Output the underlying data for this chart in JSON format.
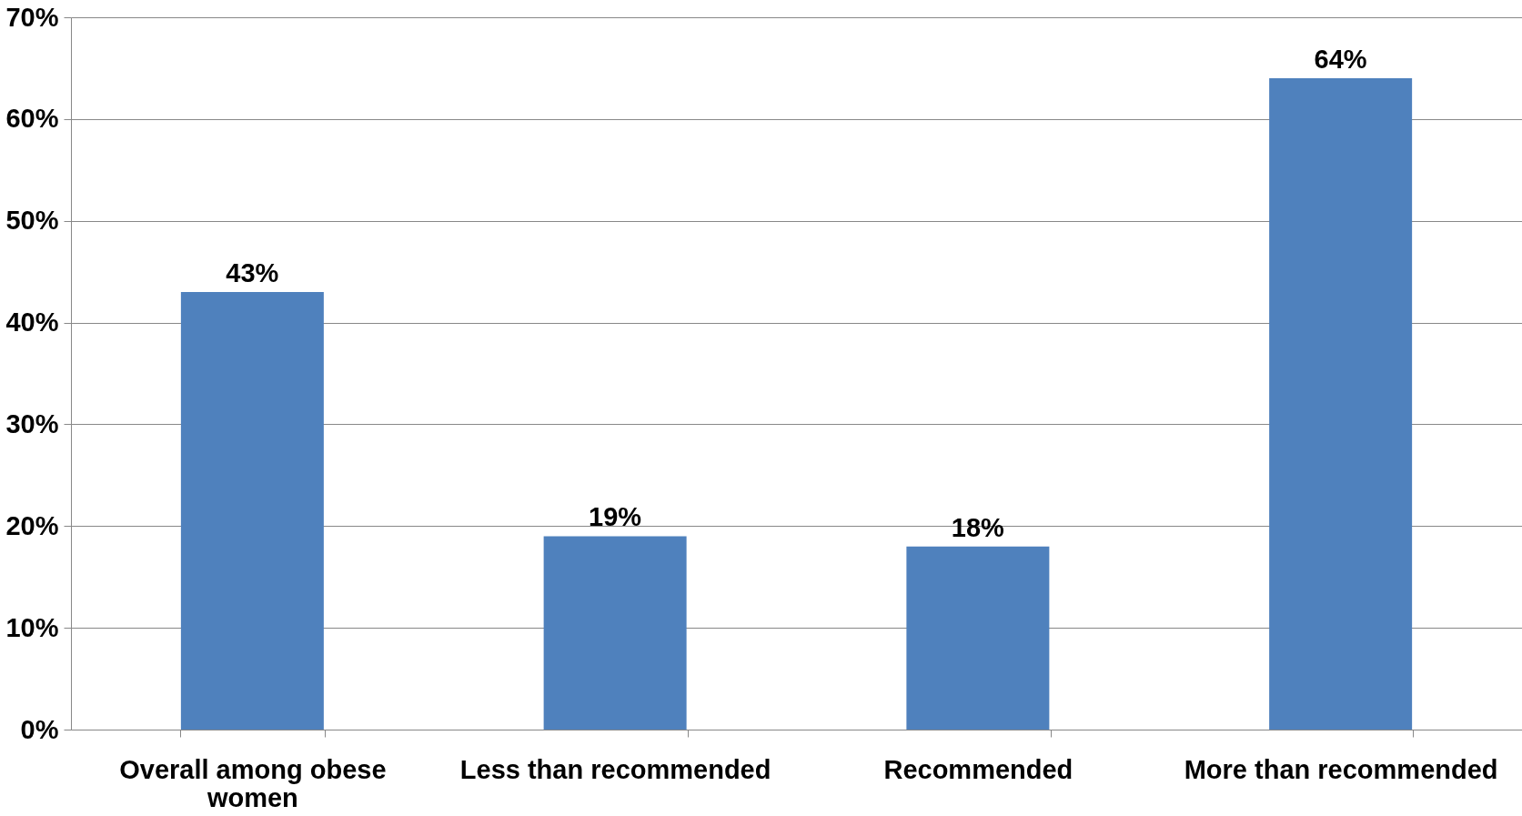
{
  "chart_data": {
    "type": "bar",
    "categories": [
      "Overall  among obese women",
      "Less than recommended",
      "Recommended",
      "More than recommended"
    ],
    "values": [
      43,
      19,
      18,
      64
    ],
    "color": "#4f81bd",
    "value_labels": [
      "43%",
      "19%",
      "18%",
      "64%"
    ],
    "ylim": [
      0,
      70
    ],
    "yticks": [
      {
        "value": 0,
        "label": "0%"
      },
      {
        "value": 10,
        "label": "10%"
      },
      {
        "value": 20,
        "label": "20%"
      },
      {
        "value": 30,
        "label": "30%"
      },
      {
        "value": 40,
        "label": "40%"
      },
      {
        "value": 50,
        "label": "50%"
      },
      {
        "value": 60,
        "label": "60%"
      },
      {
        "value": 70,
        "label": "70%"
      }
    ],
    "grid": "y"
  }
}
